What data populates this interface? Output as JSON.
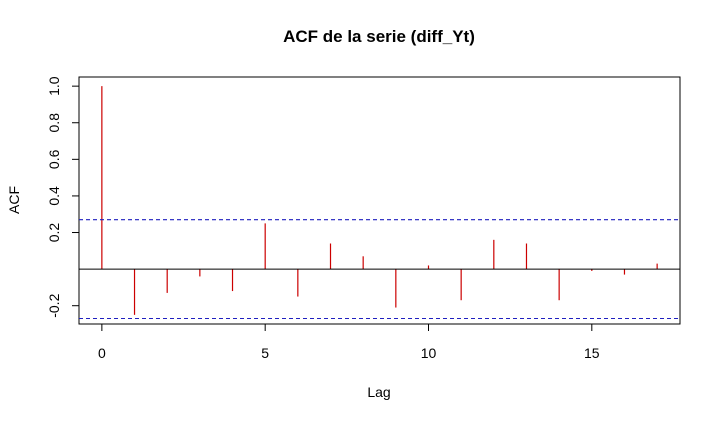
{
  "chart_data": {
    "type": "bar",
    "title": "ACF de la serie (diff_Yt)",
    "xlabel": "Lag",
    "ylabel": "ACF",
    "xlim": [
      -0.7,
      17.7
    ],
    "ylim": [
      -0.3,
      1.05
    ],
    "x_ticks": [
      0,
      5,
      10,
      15
    ],
    "y_ticks": [
      -0.2,
      0.2,
      0.4,
      0.6,
      0.8,
      1.0
    ],
    "x_tick_labels": [
      "0",
      "5",
      "10",
      "15"
    ],
    "y_tick_labels": [
      "-0.2",
      "0.2",
      "0.4",
      "0.6",
      "0.8",
      "1.0"
    ],
    "lags": [
      0,
      1,
      2,
      3,
      4,
      5,
      6,
      7,
      8,
      9,
      10,
      11,
      12,
      13,
      14,
      15,
      16,
      17
    ],
    "values": [
      1.0,
      -0.25,
      -0.13,
      -0.04,
      -0.12,
      0.25,
      -0.15,
      0.14,
      0.07,
      -0.21,
      0.02,
      -0.17,
      0.16,
      0.14,
      -0.17,
      -0.01,
      -0.03,
      0.03
    ],
    "confidence_bounds": [
      0.27,
      -0.27
    ],
    "grid": false,
    "colors": {
      "spikes": "#cc0000",
      "confidence": "#1f1fbf",
      "axes": "#000000"
    }
  }
}
